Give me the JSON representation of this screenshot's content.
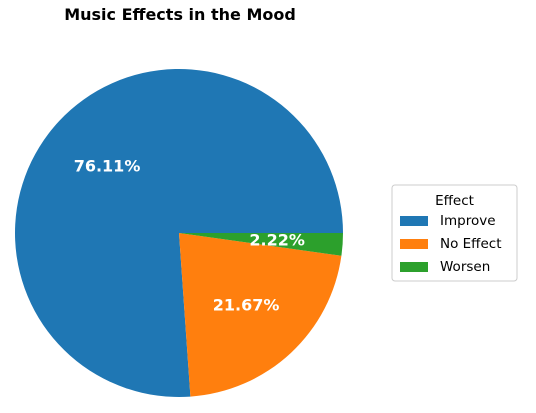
{
  "chart_data": {
    "type": "pie",
    "title": "Music Effects in the Mood",
    "categories": [
      "Improve",
      "No Effect",
      "Worsen"
    ],
    "values": [
      76.11,
      21.67,
      2.22
    ],
    "value_labels": [
      "76.11%",
      "21.67%",
      "2.22%"
    ],
    "colors": [
      "#1f77b4",
      "#ff7f0e",
      "#2ca02c"
    ],
    "legend": {
      "title": "Effect",
      "placement": "center-right"
    }
  }
}
